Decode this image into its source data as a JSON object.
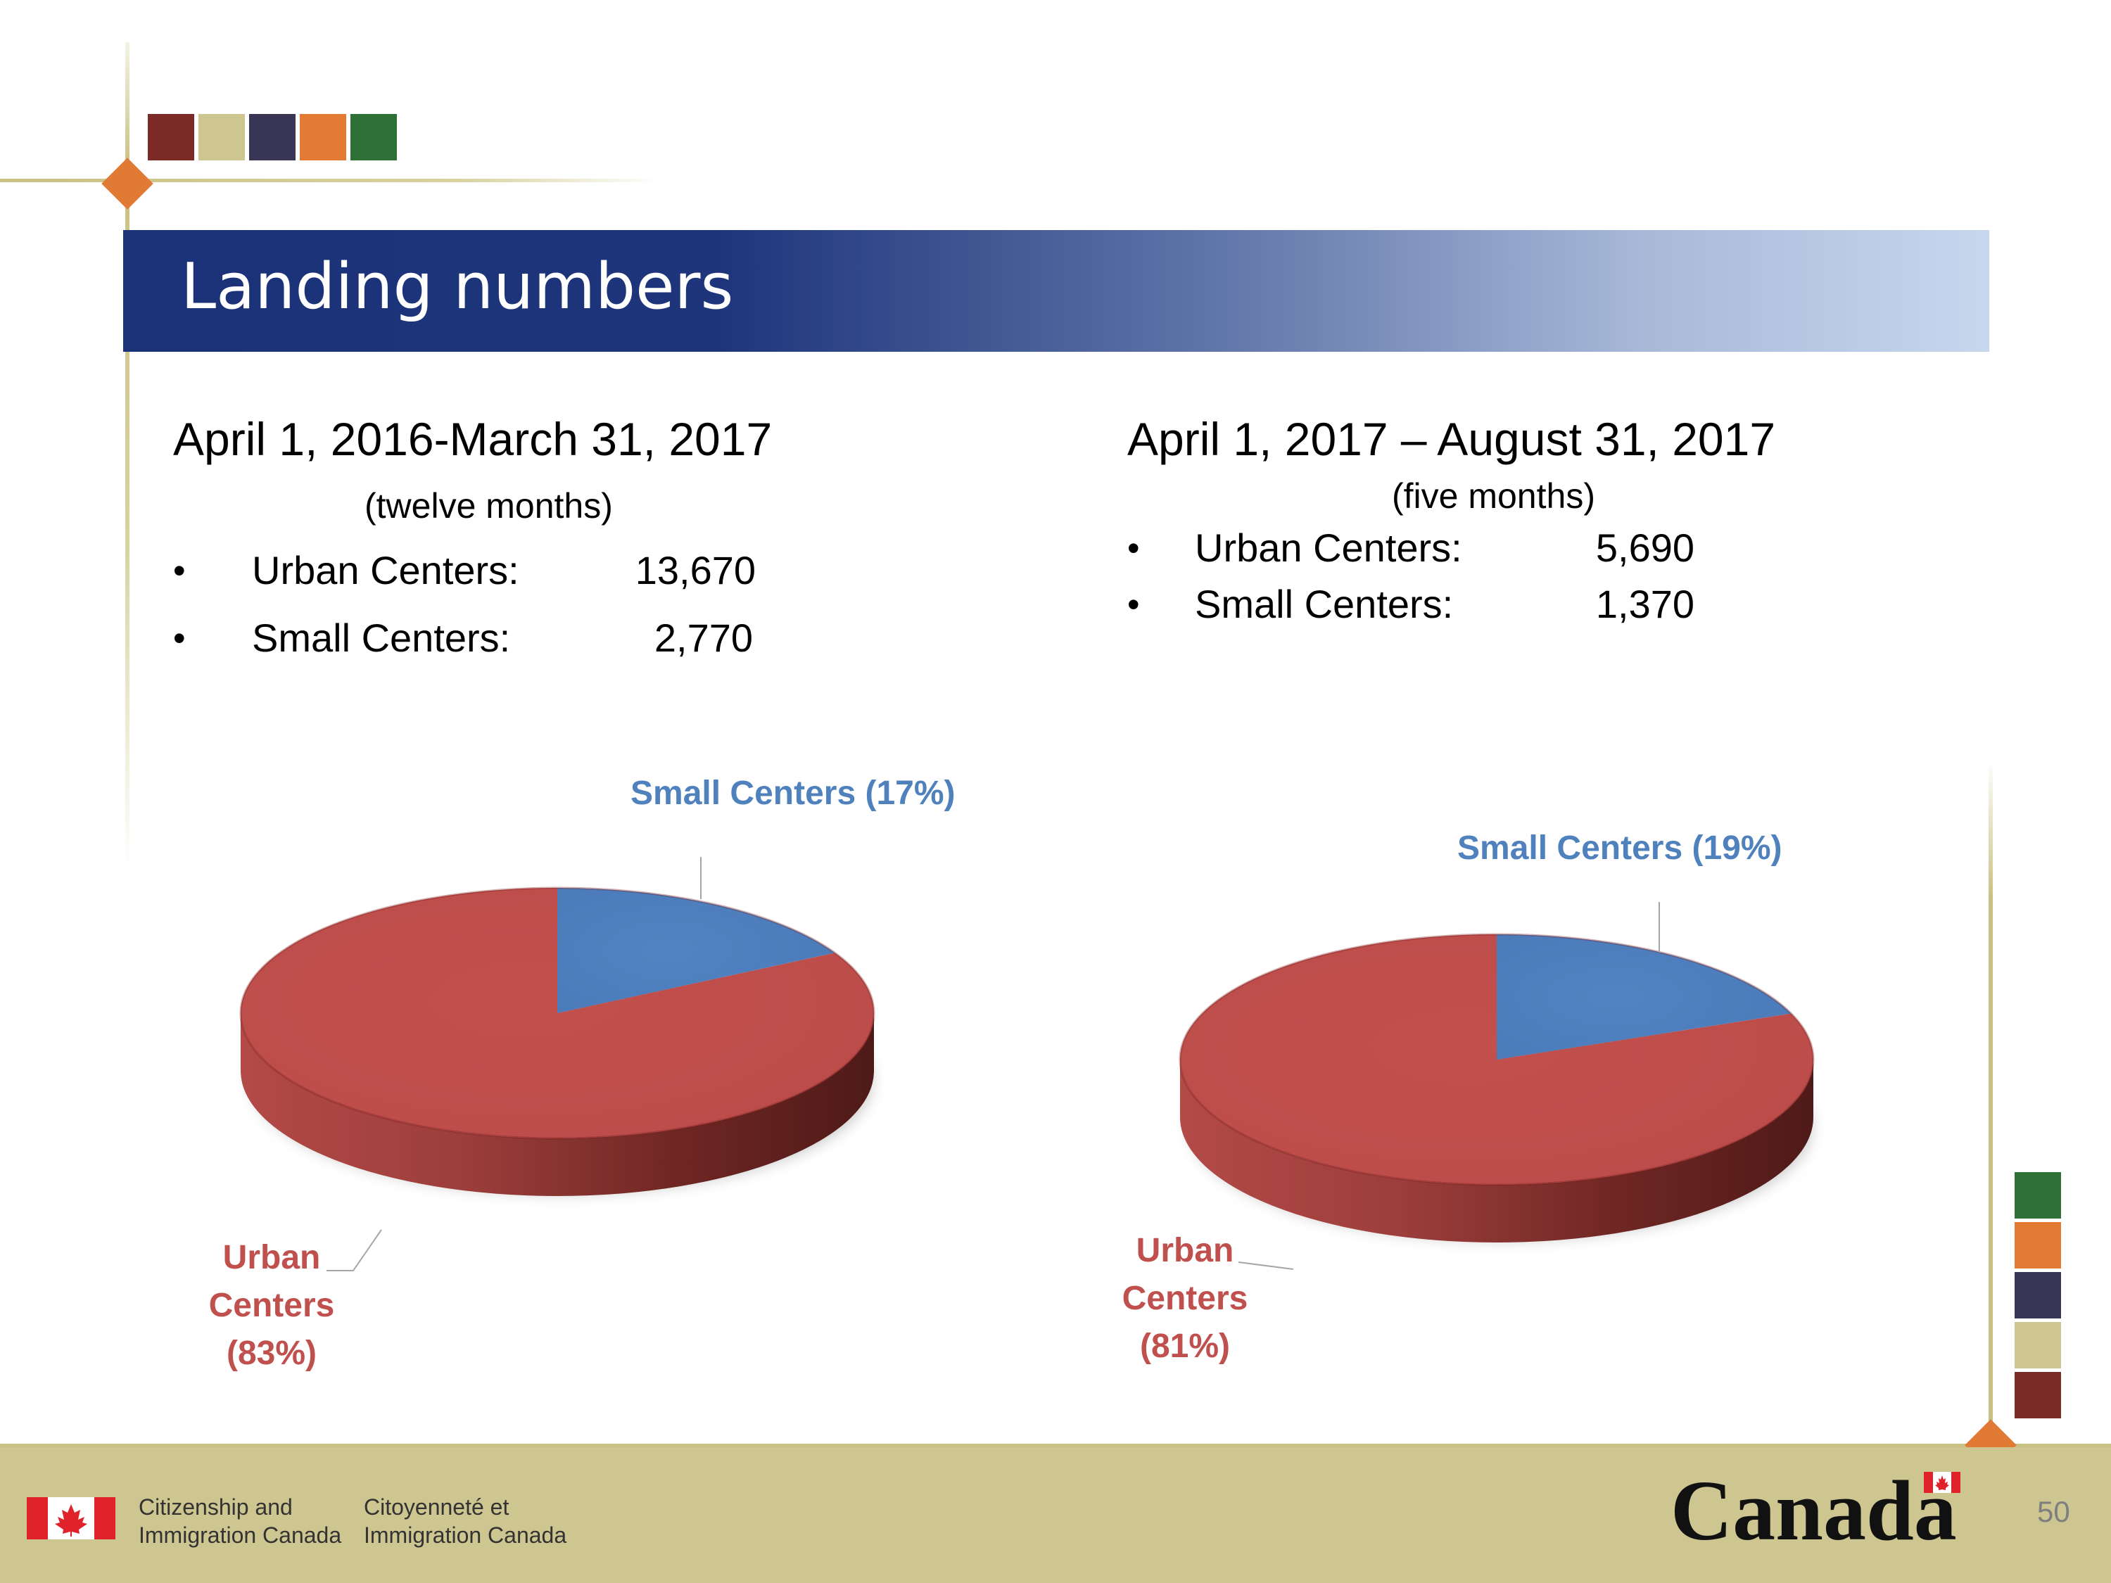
{
  "title": "Landing numbers",
  "colors": {
    "title_bar_start": "#1a3278",
    "title_bar_end": "#c6d7ee",
    "urban": "#c0504d",
    "small": "#4f81bd",
    "footer": "#cdc690",
    "accent_squares": [
      "#7b2a26",
      "#cdc690",
      "#383654",
      "#e37b35",
      "#2e7035"
    ]
  },
  "periods": [
    {
      "title": "April 1, 2016-March 31, 2017",
      "subtitle": "(twelve months)",
      "items": [
        {
          "label": "Urban Centers:",
          "value": "13,670"
        },
        {
          "label": "Small Centers:",
          "value": "2,770"
        }
      ]
    },
    {
      "title": "April 1, 2017 – August 31, 2017",
      "subtitle": "(five months)",
      "items": [
        {
          "label": "Urban Centers:",
          "value": "5,690"
        },
        {
          "label": "Small Centers:",
          "value": "1,370"
        }
      ]
    }
  ],
  "chart_data": [
    {
      "type": "pie",
      "title": "",
      "categories": [
        "Urban Centers",
        "Small Centers"
      ],
      "values": [
        83,
        17
      ],
      "labels": {
        "small": "Small Centers (17%)",
        "urban_1": "Urban",
        "urban_2": "Centers",
        "urban_3": "(83%)"
      }
    },
    {
      "type": "pie",
      "title": "",
      "categories": [
        "Urban Centers",
        "Small Centers"
      ],
      "values": [
        81,
        19
      ],
      "labels": {
        "small": "Small Centers (19%)",
        "urban_1": "Urban",
        "urban_2": "Centers",
        "urban_3": "(81%)"
      }
    }
  ],
  "footer": {
    "dept_en_1": "Citizenship and",
    "dept_en_2": "Immigration Canada",
    "dept_fr_1": "Citoyenneté et",
    "dept_fr_2": "Immigration Canada",
    "wordmark": "Canada",
    "page_number": "50"
  }
}
